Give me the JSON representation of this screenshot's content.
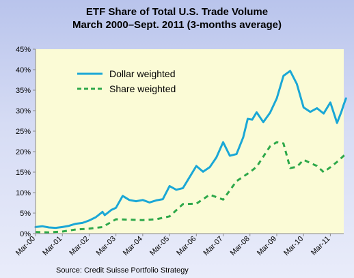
{
  "chart_data": {
    "type": "line",
    "title": "ETF Share of Total U.S. Trade Volume",
    "subtitle": "March 2000–Sept. 2011 (3-months average)",
    "xlabel": "",
    "ylabel": "",
    "x_start": "2000-03",
    "x_end": "2011-09",
    "xticks": [
      "Mar-00",
      "Mar-01",
      "Mar-02",
      "Mar-03",
      "Mar-04",
      "Mar-05",
      "Mar-06",
      "Mar-07",
      "Mar-08",
      "Mar-09",
      "Mar-10",
      "Mar-11"
    ],
    "xtick_dates": [
      "2000-03",
      "2001-03",
      "2002-03",
      "2003-03",
      "2004-03",
      "2005-03",
      "2006-03",
      "2007-03",
      "2008-03",
      "2009-03",
      "2010-03",
      "2011-03"
    ],
    "ylim": [
      0,
      45
    ],
    "yticks": [
      0,
      5,
      10,
      15,
      20,
      25,
      30,
      35,
      40,
      45
    ],
    "ytick_labels": [
      "0%",
      "5%",
      "10%",
      "15%",
      "20%",
      "25%",
      "30%",
      "35%",
      "40%",
      "45%"
    ],
    "grid": false,
    "legend_position": "top-left",
    "source": "Source: Credit Suisse Portfolio Strategy",
    "series": [
      {
        "name": "Dollar weighted",
        "style": "solid",
        "color": "#1aa7d6",
        "points": [
          [
            "2000-03",
            1.6
          ],
          [
            "2000-06",
            1.8
          ],
          [
            "2000-09",
            1.5
          ],
          [
            "2000-12",
            1.4
          ],
          [
            "2001-03",
            1.6
          ],
          [
            "2001-06",
            1.9
          ],
          [
            "2001-09",
            2.4
          ],
          [
            "2001-12",
            2.6
          ],
          [
            "2002-03",
            3.2
          ],
          [
            "2002-06",
            4.0
          ],
          [
            "2002-09",
            5.3
          ],
          [
            "2002-10",
            4.5
          ],
          [
            "2003-01",
            5.8
          ],
          [
            "2003-03",
            6.3
          ],
          [
            "2003-06",
            9.2
          ],
          [
            "2003-09",
            8.2
          ],
          [
            "2003-12",
            7.9
          ],
          [
            "2004-03",
            8.2
          ],
          [
            "2004-06",
            7.6
          ],
          [
            "2004-09",
            8.1
          ],
          [
            "2004-12",
            8.4
          ],
          [
            "2005-03",
            11.6
          ],
          [
            "2005-06",
            10.7
          ],
          [
            "2005-09",
            11.1
          ],
          [
            "2005-12",
            13.8
          ],
          [
            "2006-03",
            16.5
          ],
          [
            "2006-06",
            15.1
          ],
          [
            "2006-09",
            16.2
          ],
          [
            "2006-12",
            18.6
          ],
          [
            "2007-03",
            22.3
          ],
          [
            "2007-06",
            19.0
          ],
          [
            "2007-09",
            19.4
          ],
          [
            "2007-12",
            23.5
          ],
          [
            "2008-02",
            28.0
          ],
          [
            "2008-04",
            27.8
          ],
          [
            "2008-06",
            29.6
          ],
          [
            "2008-09",
            27.2
          ],
          [
            "2008-12",
            29.5
          ],
          [
            "2009-03",
            33.0
          ],
          [
            "2009-06",
            38.5
          ],
          [
            "2009-09",
            39.7
          ],
          [
            "2009-12",
            36.5
          ],
          [
            "2010-03",
            30.8
          ],
          [
            "2010-06",
            29.7
          ],
          [
            "2010-09",
            30.6
          ],
          [
            "2010-12",
            29.3
          ],
          [
            "2011-03",
            32.0
          ],
          [
            "2011-06",
            27.0
          ],
          [
            "2011-08",
            29.8
          ],
          [
            "2011-09",
            31.5
          ],
          [
            "2011-10",
            33.0
          ]
        ]
      },
      {
        "name": "Share weighted",
        "style": "dashed",
        "color": "#2ea84a",
        "points": [
          [
            "2000-03",
            0.4
          ],
          [
            "2000-09",
            0.3
          ],
          [
            "2001-03",
            0.5
          ],
          [
            "2001-09",
            1.0
          ],
          [
            "2002-03",
            1.2
          ],
          [
            "2002-09",
            1.6
          ],
          [
            "2003-03",
            3.5
          ],
          [
            "2003-09",
            3.4
          ],
          [
            "2004-03",
            3.3
          ],
          [
            "2004-09",
            3.5
          ],
          [
            "2005-03",
            4.2
          ],
          [
            "2005-09",
            7.2
          ],
          [
            "2006-03",
            7.3
          ],
          [
            "2006-09",
            9.5
          ],
          [
            "2007-03",
            8.3
          ],
          [
            "2007-09",
            12.8
          ],
          [
            "2008-03",
            15.0
          ],
          [
            "2008-06",
            16.3
          ],
          [
            "2008-12",
            21.3
          ],
          [
            "2009-03",
            22.3
          ],
          [
            "2009-06",
            22.0
          ],
          [
            "2009-09",
            16.0
          ],
          [
            "2009-12",
            16.3
          ],
          [
            "2010-03",
            18.0
          ],
          [
            "2010-09",
            16.5
          ],
          [
            "2010-12",
            15.0
          ],
          [
            "2011-03",
            16.2
          ],
          [
            "2011-06",
            17.5
          ],
          [
            "2011-10",
            19.5
          ]
        ]
      }
    ]
  }
}
